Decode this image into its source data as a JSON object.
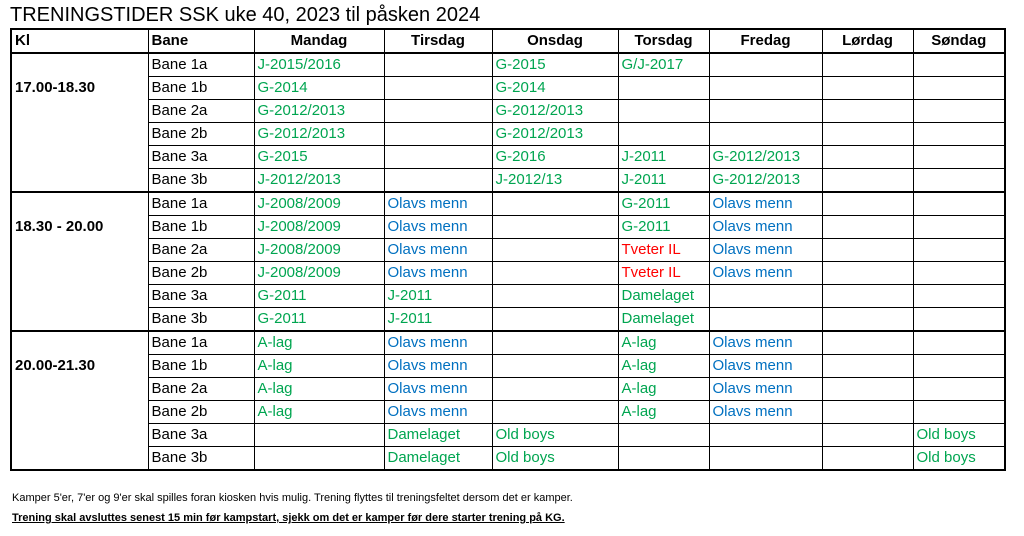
{
  "title": "TRENINGSTIDER SSK uke 40, 2023 til påsken 2024",
  "headers": [
    "Kl",
    "Bane",
    "Mandag",
    "Tirsdag",
    "Onsdag",
    "Torsdag",
    "Fredag",
    "Lørdag",
    "Søndag"
  ],
  "colors": {
    "green": "#00a550",
    "blue": "#0070c0",
    "red": "#ff0000"
  },
  "blocks": [
    {
      "time": "17.00-18.30",
      "rows": [
        {
          "bane": "Bane 1a",
          "cells": [
            "J-2015/2016",
            "",
            "G-2015",
            "G/J-2017",
            "",
            "",
            ""
          ]
        },
        {
          "bane": "Bane 1b",
          "cells": [
            "G-2014",
            "",
            "G-2014",
            "",
            "",
            "",
            ""
          ]
        },
        {
          "bane": "Bane 2a",
          "cells": [
            "G-2012/2013",
            "",
            "G-2012/2013",
            "",
            "",
            "",
            ""
          ]
        },
        {
          "bane": "Bane 2b",
          "cells": [
            "G-2012/2013",
            "",
            "G-2012/2013",
            "",
            "",
            "",
            ""
          ]
        },
        {
          "bane": "Bane 3a",
          "cells": [
            "G-2015",
            "",
            "G-2016",
            "J-2011",
            "G-2012/2013",
            "",
            ""
          ]
        },
        {
          "bane": "Bane 3b",
          "cells": [
            "J-2012/2013",
            "",
            "J-2012/13",
            "J-2011",
            "G-2012/2013",
            "",
            ""
          ]
        }
      ]
    },
    {
      "time": "18.30 - 20.00",
      "rows": [
        {
          "bane": "Bane 1a",
          "cells": [
            "J-2008/2009",
            "Olavs menn",
            "",
            "G-2011",
            "Olavs menn",
            "",
            ""
          ]
        },
        {
          "bane": "Bane 1b",
          "cells": [
            "J-2008/2009",
            "Olavs menn",
            "",
            "G-2011",
            "Olavs menn",
            "",
            ""
          ]
        },
        {
          "bane": "Bane 2a",
          "cells": [
            "J-2008/2009",
            "Olavs menn",
            "",
            "Tveter IL",
            "Olavs menn",
            "",
            ""
          ]
        },
        {
          "bane": "Bane 2b",
          "cells": [
            "J-2008/2009",
            "Olavs menn",
            "",
            "Tveter IL",
            "Olavs menn",
            "",
            ""
          ]
        },
        {
          "bane": "Bane 3a",
          "cells": [
            "G-2011",
            "J-2011",
            "",
            "Damelaget",
            "",
            "",
            ""
          ]
        },
        {
          "bane": "Bane 3b",
          "cells": [
            "G-2011",
            "J-2011",
            "",
            "Damelaget",
            "",
            "",
            ""
          ]
        }
      ]
    },
    {
      "time": "20.00-21.30",
      "rows": [
        {
          "bane": "Bane 1a",
          "cells": [
            "A-lag",
            "Olavs menn",
            "",
            "A-lag",
            "Olavs menn",
            "",
            ""
          ]
        },
        {
          "bane": "Bane 1b",
          "cells": [
            "A-lag",
            "Olavs menn",
            "",
            "A-lag",
            "Olavs menn",
            "",
            ""
          ]
        },
        {
          "bane": "Bane 2a",
          "cells": [
            "A-lag",
            "Olavs menn",
            "",
            "A-lag",
            "Olavs menn",
            "",
            ""
          ]
        },
        {
          "bane": "Bane 2b",
          "cells": [
            "A-lag",
            "Olavs menn",
            "",
            "A-lag",
            "Olavs menn",
            "",
            ""
          ]
        },
        {
          "bane": "Bane 3a",
          "cells": [
            "",
            "Damelaget",
            "Old boys",
            "",
            "",
            "",
            "Old boys"
          ]
        },
        {
          "bane": "Bane 3b",
          "cells": [
            "",
            "Damelaget",
            "Old boys",
            "",
            "",
            "",
            "Old boys"
          ]
        }
      ]
    }
  ],
  "footer": {
    "note": "Kamper 5'er, 7'er og 9'er skal spilles foran kiosken hvis mulig. Trening flyttes til treningsfeltet dersom det er kamper.",
    "warning": "Trening skal avsluttes senest 15 min før kampstart, sjekk om det er kamper før dere starter trening på KG."
  }
}
